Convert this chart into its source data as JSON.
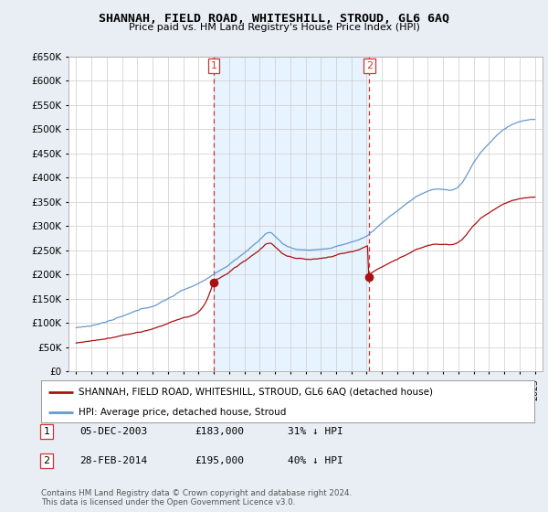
{
  "title": "SHANNAH, FIELD ROAD, WHITESHILL, STROUD, GL6 6AQ",
  "subtitle": "Price paid vs. HM Land Registry's House Price Index (HPI)",
  "ytick_values": [
    0,
    50000,
    100000,
    150000,
    200000,
    250000,
    300000,
    350000,
    400000,
    450000,
    500000,
    550000,
    600000,
    650000
  ],
  "hpi_color": "#6699cc",
  "price_color": "#aa1111",
  "vline_color": "#cc3333",
  "shade_color": "#ddeeff",
  "sale1_date_x": 2004.0,
  "sale1_price": 183000,
  "sale1_label": "1",
  "sale2_date_x": 2014.17,
  "sale2_price": 195000,
  "sale2_label": "2",
  "legend_label_red": "SHANNAH, FIELD ROAD, WHITESHILL, STROUD, GL6 6AQ (detached house)",
  "legend_label_blue": "HPI: Average price, detached house, Stroud",
  "table_row1": [
    "1",
    "05-DEC-2003",
    "£183,000",
    "31% ↓ HPI"
  ],
  "table_row2": [
    "2",
    "28-FEB-2014",
    "£195,000",
    "40% ↓ HPI"
  ],
  "footnote": "Contains HM Land Registry data © Crown copyright and database right 2024.\nThis data is licensed under the Open Government Licence v3.0.",
  "xlim_min": 1994.5,
  "xlim_max": 2025.5,
  "ylim_min": 0,
  "ylim_max": 650000,
  "background_color": "#e8eef4",
  "plot_bg": "#ffffff"
}
